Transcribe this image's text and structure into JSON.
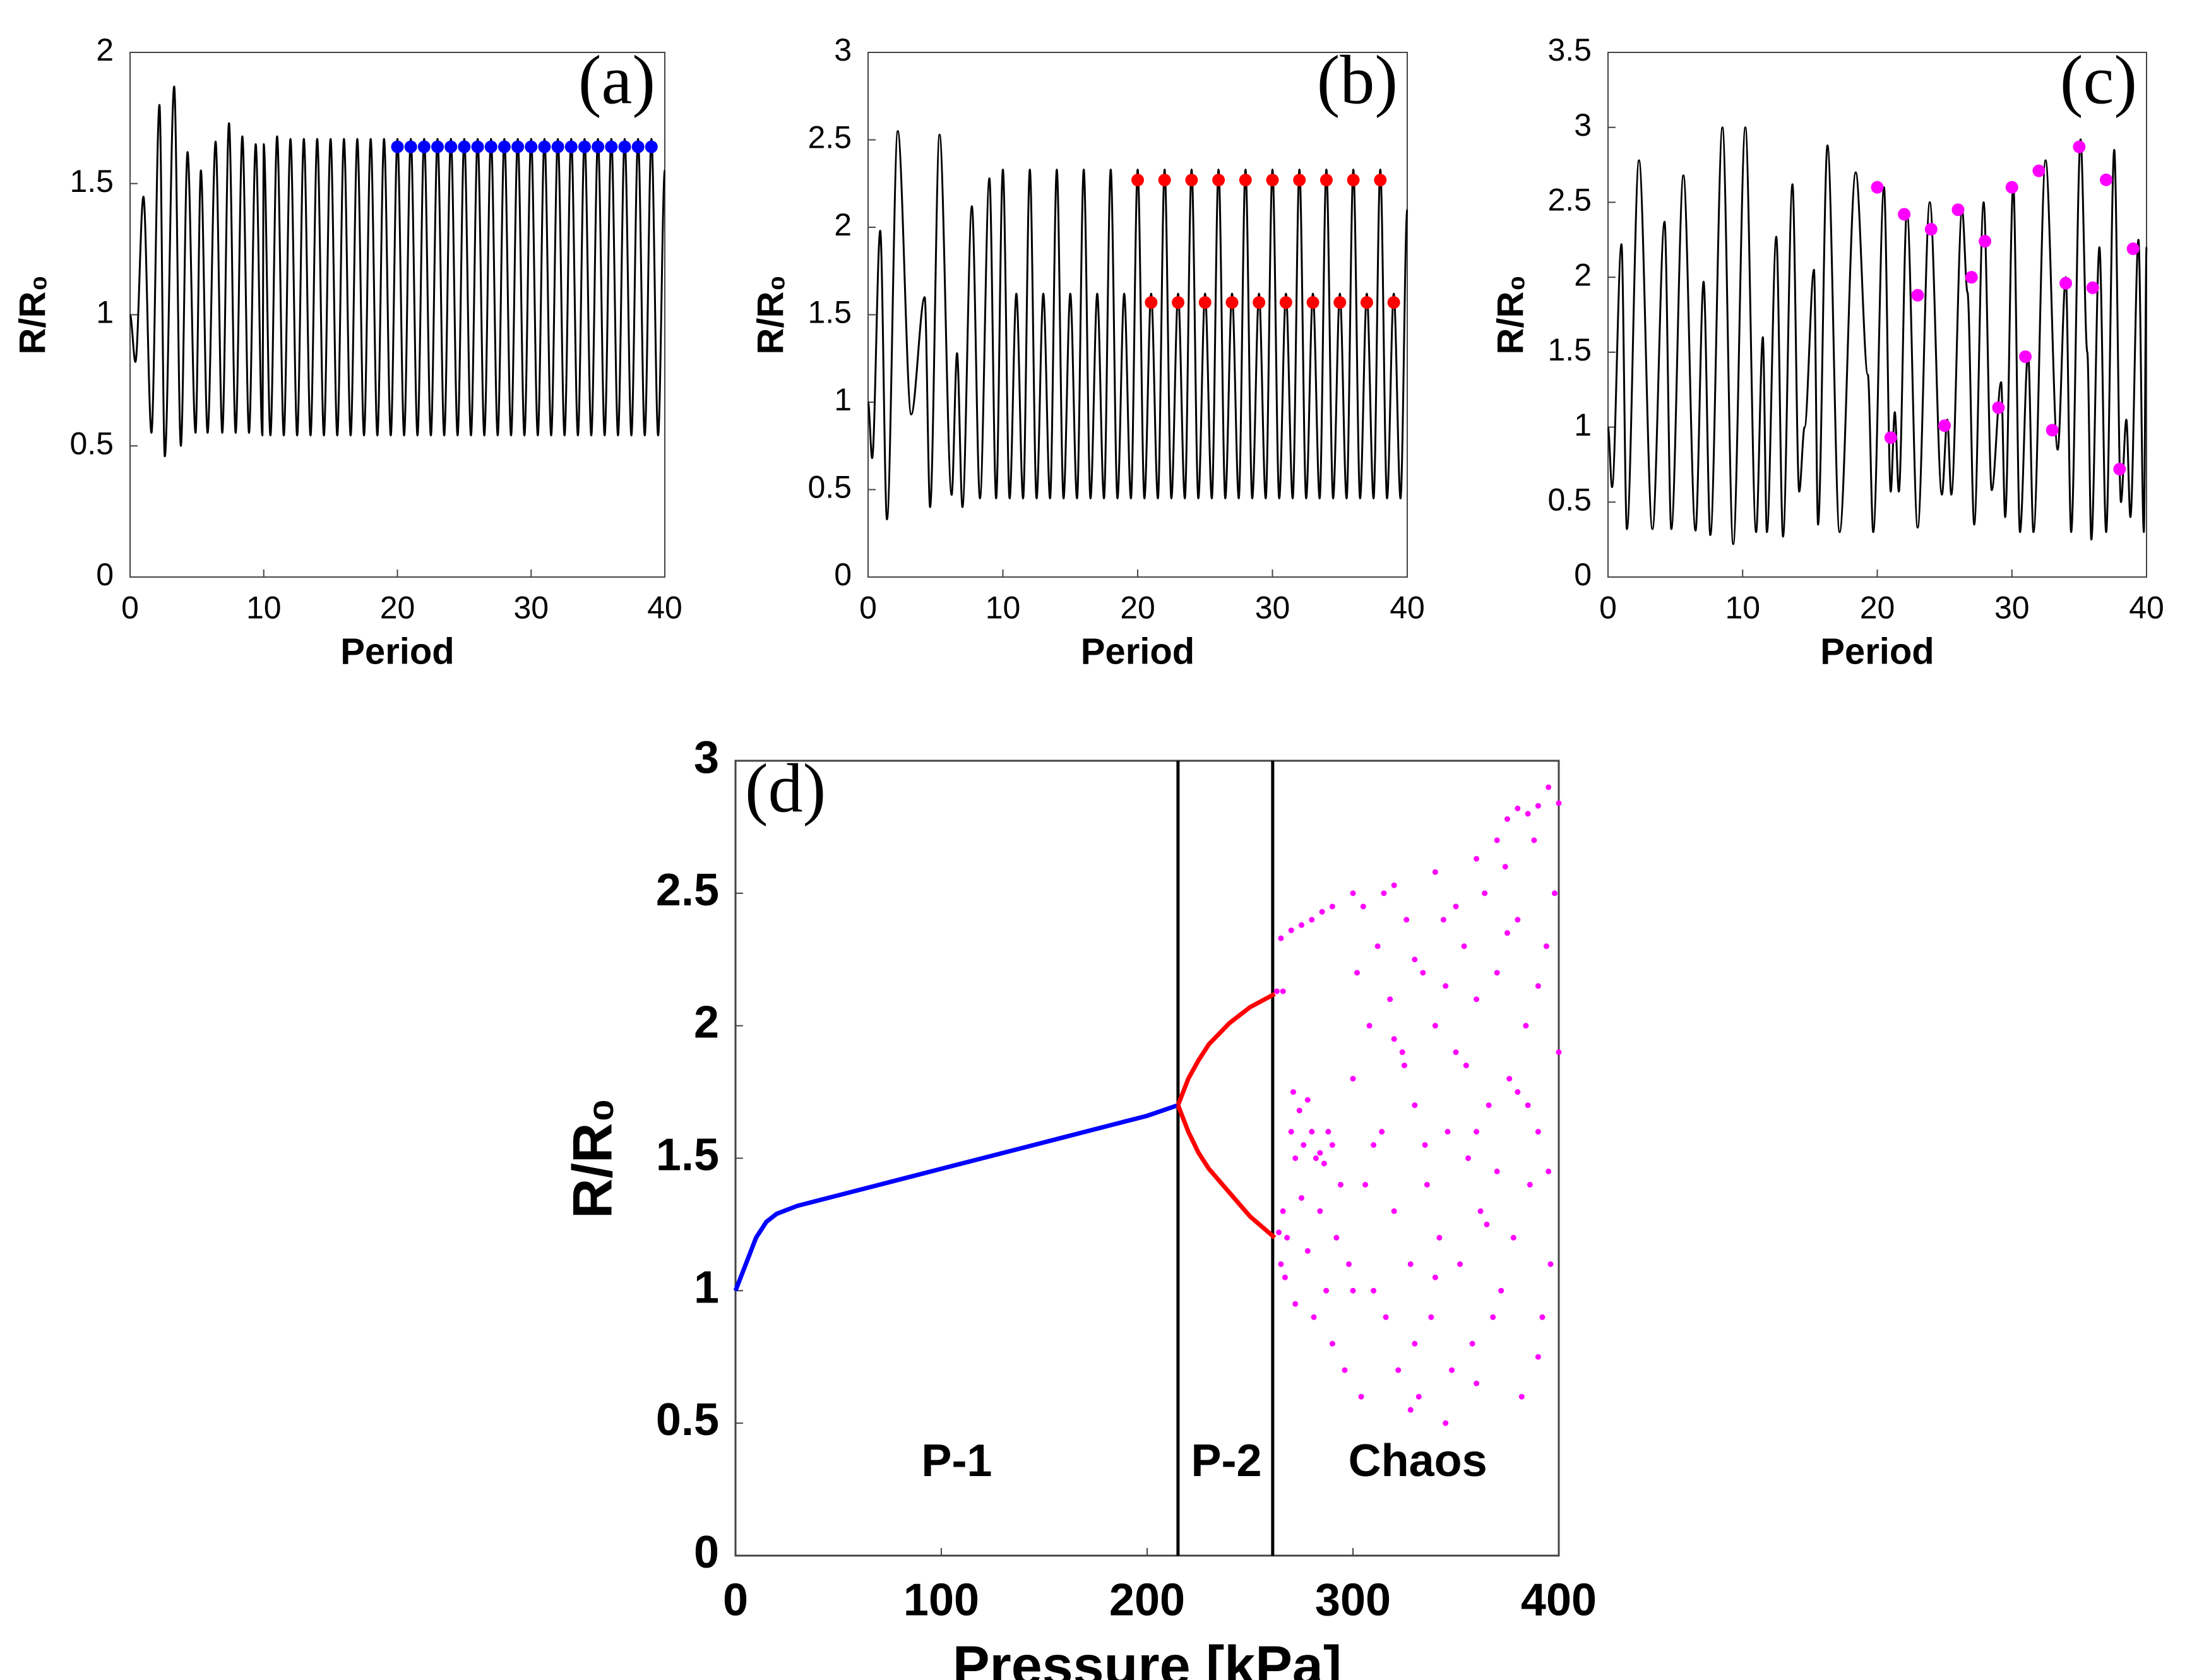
{
  "chart_data": [
    {
      "type": "line",
      "panel": "(a)",
      "xlabel": "Period",
      "ylabel": "R/R₀",
      "xlim": [
        0,
        40
      ],
      "xticks": [
        0,
        10,
        20,
        30,
        40
      ],
      "ylim": [
        0,
        2
      ],
      "yticks": [
        0,
        0.5,
        1,
        1.5,
        2
      ],
      "color": "#000000",
      "x": [
        0,
        0.4,
        1,
        1.6,
        2.2,
        2.6,
        3.3,
        3.8,
        4.3,
        4.9,
        5.3,
        5.8,
        6.4,
        6.9,
        7.4,
        7.9,
        8.4,
        8.9,
        9.4,
        9.9,
        10,
        10.5,
        11,
        11.5,
        12,
        12.5,
        13,
        13.5,
        14,
        14.5,
        15,
        15.5,
        16,
        16.5,
        17,
        17.5,
        18,
        18.5,
        19,
        19.5,
        20,
        20.5,
        21,
        21.5,
        22,
        22.5,
        23,
        23.5,
        24,
        24.5,
        25,
        25.5,
        26,
        26.5,
        27,
        27.5,
        28,
        28.5,
        29,
        29.5,
        30,
        30.5,
        31,
        31.5,
        32,
        32.5,
        33,
        33.5,
        34,
        34.5,
        35,
        35.5,
        36,
        36.5,
        37,
        37.5,
        38,
        38.5,
        39,
        39.5,
        40
      ],
      "values": [
        1,
        0.82,
        1.45,
        0.55,
        1.8,
        0.46,
        1.87,
        0.5,
        1.62,
        0.55,
        1.55,
        0.55,
        1.66,
        0.55,
        1.73,
        0.55,
        1.68,
        0.55,
        1.65,
        0.54,
        1.65,
        0.54,
        1.68,
        0.54,
        1.67,
        0.54,
        1.67,
        0.54,
        1.67,
        0.54,
        1.67,
        0.54,
        1.67,
        0.54,
        1.67,
        0.54,
        1.67,
        0.54,
        1.67,
        0.54,
        1.67,
        0.54,
        1.67,
        0.54,
        1.67,
        0.54,
        1.67,
        0.54,
        1.67,
        0.54,
        1.67,
        0.54,
        1.67,
        0.54,
        1.67,
        0.54,
        1.67,
        0.54,
        1.67,
        0.54,
        1.67,
        0.54,
        1.67,
        0.54,
        1.67,
        0.54,
        1.67,
        0.54,
        1.67,
        0.54,
        1.67,
        0.54,
        1.67,
        0.54,
        1.67,
        0.54,
        1.67,
        0.54,
        1.67,
        0.54,
        1.55
      ],
      "markers": {
        "color": "#0000ff",
        "x": [
          20,
          21,
          22,
          23,
          24,
          25,
          26,
          27,
          28,
          29,
          30,
          31,
          32,
          33,
          34,
          35,
          36,
          37,
          38,
          39
        ],
        "values": [
          1.64,
          1.64,
          1.64,
          1.64,
          1.64,
          1.64,
          1.64,
          1.64,
          1.64,
          1.64,
          1.64,
          1.64,
          1.64,
          1.64,
          1.64,
          1.64,
          1.64,
          1.64,
          1.64,
          1.64
        ]
      }
    },
    {
      "type": "line",
      "panel": "(b)",
      "xlabel": "Period",
      "ylabel": "R/R₀",
      "xlim": [
        0,
        40
      ],
      "xticks": [
        0,
        10,
        20,
        30,
        40
      ],
      "ylim": [
        0,
        3
      ],
      "yticks": [
        0,
        0.5,
        1,
        1.5,
        2,
        2.5,
        3
      ],
      "color": "#000000",
      "x": [
        0,
        0.3,
        0.9,
        1.4,
        2.2,
        3.2,
        4.2,
        4.6,
        5.3,
        6.2,
        6.6,
        7,
        7.7,
        8.3,
        9,
        9.5,
        10,
        10.5,
        11,
        11.5,
        12,
        12.5,
        13,
        13.5,
        14,
        14.5,
        15,
        15.5,
        16,
        16.5,
        17,
        17.5,
        18,
        18.5,
        19,
        19.5,
        20,
        20.5,
        21,
        21.5,
        22,
        22.5,
        23,
        23.5,
        24,
        24.5,
        25,
        25.5,
        26,
        26.5,
        27,
        27.5,
        28,
        28.5,
        29,
        29.5,
        30,
        30.5,
        31,
        31.5,
        32,
        32.5,
        33,
        33.5,
        34,
        34.5,
        35,
        35.5,
        36,
        36.5,
        37,
        37.5,
        38,
        38.5,
        39,
        39.5,
        40
      ],
      "values": [
        1,
        0.68,
        1.98,
        0.33,
        2.55,
        0.93,
        1.6,
        0.4,
        2.53,
        0.47,
        1.28,
        0.4,
        2.12,
        0.45,
        2.28,
        0.45,
        2.33,
        0.45,
        1.62,
        0.45,
        2.33,
        0.45,
        1.62,
        0.45,
        2.33,
        0.45,
        1.62,
        0.45,
        2.33,
        0.45,
        1.62,
        0.45,
        2.33,
        0.45,
        1.62,
        0.45,
        2.33,
        0.45,
        1.62,
        0.45,
        2.33,
        0.45,
        1.62,
        0.45,
        2.33,
        0.45,
        1.62,
        0.45,
        2.33,
        0.45,
        1.62,
        0.45,
        2.33,
        0.45,
        1.62,
        0.45,
        2.33,
        0.45,
        1.62,
        0.45,
        2.33,
        0.45,
        1.62,
        0.45,
        2.33,
        0.45,
        1.62,
        0.45,
        2.33,
        0.45,
        1.62,
        0.45,
        2.33,
        0.45,
        1.62,
        0.45,
        2.1
      ],
      "markers": {
        "color": "#ff0000",
        "x": [
          20,
          21,
          22,
          23,
          24,
          25,
          26,
          27,
          28,
          29,
          30,
          31,
          32,
          33,
          34,
          35,
          36,
          37,
          38,
          39
        ],
        "values": [
          2.27,
          1.57,
          2.27,
          1.57,
          2.27,
          1.57,
          2.27,
          1.57,
          2.27,
          1.57,
          2.27,
          1.57,
          2.27,
          1.57,
          2.27,
          1.57,
          2.27,
          1.57,
          2.27,
          1.57
        ]
      }
    },
    {
      "type": "line",
      "panel": "(c)",
      "xlabel": "Period",
      "ylabel": "R/R₀",
      "xlim": [
        0,
        40
      ],
      "xticks": [
        0,
        10,
        20,
        30,
        40
      ],
      "ylim": [
        0,
        3.5
      ],
      "yticks": [
        0,
        0.5,
        1,
        1.5,
        2,
        2.5,
        3,
        3.5
      ],
      "color": "#000000",
      "x": [
        0,
        0.3,
        1,
        1.4,
        2.3,
        3.3,
        4.2,
        4.7,
        5.6,
        6.5,
        7.1,
        7.6,
        8.5,
        9.3,
        10.2,
        11,
        11.5,
        11.8,
        12.5,
        13,
        13.7,
        14.2,
        14.6,
        15.3,
        15.6,
        16.3,
        17.2,
        18.4,
        19.3,
        19.7,
        20.5,
        21,
        21.3,
        21.6,
        22.2,
        23,
        23.9,
        24.8,
        25.2,
        25.5,
        26.3,
        26.7,
        27.2,
        27.9,
        28.5,
        29.2,
        29.5,
        30.1,
        30.6,
        31.2,
        31.6,
        32.5,
        33.4,
        34,
        34.4,
        35.1,
        35.6,
        35.9,
        36.5,
        37,
        37.6,
        38.1,
        38.5,
        38.8,
        39.4,
        39.8,
        40
      ],
      "values": [
        1,
        0.6,
        2.22,
        0.32,
        2.78,
        0.32,
        2.37,
        0.32,
        2.68,
        0.31,
        1.97,
        0.28,
        3,
        0.22,
        3,
        0.3,
        1.6,
        0.3,
        2.27,
        0.27,
        2.62,
        0.57,
        1,
        2.05,
        0.35,
        2.88,
        0.3,
        2.7,
        1.35,
        0.3,
        2.6,
        0.57,
        1.1,
        0.57,
        2.45,
        0.33,
        2.5,
        0.55,
        1.05,
        0.55,
        2.45,
        1.9,
        0.35,
        2.5,
        0.58,
        1.3,
        0.4,
        2.62,
        0.3,
        1.5,
        0.3,
        2.78,
        0.85,
        2,
        0.3,
        2.92,
        1.5,
        0.25,
        2.2,
        0.3,
        2.85,
        0.5,
        1.05,
        0.4,
        2.25,
        0.3,
        2.2
      ],
      "markers": {
        "color": "#ff00ff",
        "x": [
          20,
          21,
          22,
          23,
          24,
          25,
          26,
          27,
          28,
          29,
          30,
          31,
          32,
          33,
          34,
          35,
          36,
          37,
          38,
          39
        ],
        "values": [
          2.6,
          0.93,
          2.42,
          1.88,
          2.32,
          1.01,
          2.45,
          2,
          2.24,
          1.13,
          2.6,
          1.47,
          2.71,
          0.98,
          1.96,
          2.87,
          1.93,
          2.65,
          0.72,
          2.19
        ]
      }
    },
    {
      "type": "scatter",
      "panel": "(d)",
      "xlabel": "Pressure [kPa]",
      "ylabel": "R/R₀",
      "xlim": [
        0,
        400
      ],
      "xticks": [
        0,
        100,
        200,
        300,
        400
      ],
      "ylim": [
        0,
        3
      ],
      "yticks": [
        0,
        0.5,
        1,
        1.5,
        2,
        2.5,
        3
      ],
      "vlines": [
        215,
        261
      ],
      "series": [
        {
          "name": "P-1",
          "color": "#0000ff",
          "style": "line",
          "x": [
            0,
            5,
            10,
            15,
            20,
            30,
            40,
            60,
            80,
            100,
            120,
            140,
            160,
            180,
            200,
            215
          ],
          "values": [
            1,
            1.1,
            1.2,
            1.26,
            1.29,
            1.32,
            1.34,
            1.38,
            1.42,
            1.46,
            1.5,
            1.54,
            1.58,
            1.62,
            1.66,
            1.7
          ]
        },
        {
          "name": "P-2",
          "color": "#ff0000",
          "style": "line",
          "x": [
            215,
            220,
            225,
            230,
            240,
            250,
            262,
            null,
            215,
            220,
            225,
            230,
            240,
            250,
            262
          ],
          "values": [
            1.7,
            1.8,
            1.87,
            1.93,
            2.01,
            2.07,
            2.12,
            null,
            1.7,
            1.6,
            1.52,
            1.46,
            1.37,
            1.28,
            1.2
          ]
        },
        {
          "name": "Chaos",
          "color": "#ff00ff",
          "style": "dots",
          "x": [
            263,
            266,
            264,
            265,
            266,
            267,
            268,
            270,
            271,
            272,
            274,
            276,
            278,
            280,
            282,
            284,
            286,
            288,
            290,
            272,
            275,
            278,
            281,
            284,
            287,
            290,
            292,
            294,
            296,
            298,
            300,
            302,
            304,
            306,
            308,
            310,
            312,
            314,
            316,
            318,
            320,
            322,
            324,
            326,
            328,
            330,
            332,
            334,
            336,
            338,
            340,
            342,
            344,
            346,
            348,
            350,
            352,
            354,
            356,
            358,
            360,
            362,
            364,
            366,
            368,
            370,
            372,
            374,
            376,
            378,
            380,
            382,
            384,
            386,
            388,
            390,
            392,
            394,
            396,
            398,
            400,
            305,
            315,
            325,
            335,
            345,
            355,
            365,
            375,
            385,
            395,
            385,
            395,
            310,
            320,
            330,
            340,
            350,
            360,
            370,
            380,
            390,
            300,
            330,
            360,
            390,
            328,
            345,
            265,
            270,
            275,
            280,
            285,
            290,
            300,
            320,
            340,
            360,
            370,
            375,
            380,
            390,
            400
          ],
          "values": [
            2.13,
            2.13,
            1.22,
            1.1,
            1.3,
            1.05,
            1.2,
            1.6,
            1.75,
            1.5,
            1.68,
            1.55,
            1.72,
            1.6,
            1.5,
            1.52,
            1.48,
            1.6,
            1.55,
            0.95,
            1.35,
            1.15,
            0.9,
            1.3,
            1,
            0.8,
            1.2,
            1.4,
            0.7,
            1.1,
            1.8,
            2.2,
            0.6,
            1.4,
            2,
            1,
            2.3,
            1.6,
            0.9,
            2.1,
            1.3,
            0.7,
            1.9,
            2.4,
            1.1,
            1.7,
            0.6,
            2.2,
            1.4,
            0.9,
            2,
            1.2,
            2.4,
            1.6,
            0.7,
            1.9,
            1.1,
            2.3,
            1.5,
            0.8,
            2.1,
            1.3,
            2.5,
            1.7,
            0.9,
            2.2,
            1,
            2.6,
            1.8,
            1.2,
            2.4,
            0.6,
            2,
            1.4,
            2.7,
            1.6,
            0.9,
            2.3,
            1.1,
            2.5,
            1.9,
            2.45,
            2.5,
            1.85,
            1.55,
            2.15,
            1.85,
            1.25,
            2.35,
            2.8,
            2.9,
            1.7,
            1.45,
            1.55,
            1.95,
            2.25,
            1.05,
            2.45,
            1.6,
            1.45,
            1.75,
            2.15,
            1,
            0.8,
            0.65,
            0.75,
            0.55,
            0.5,
            2.33,
            2.36,
            2.38,
            2.4,
            2.43,
            2.45,
            2.5,
            2.53,
            2.58,
            2.63,
            2.7,
            2.78,
            2.82,
            2.83,
            2.84
          ]
        }
      ]
    }
  ]
}
